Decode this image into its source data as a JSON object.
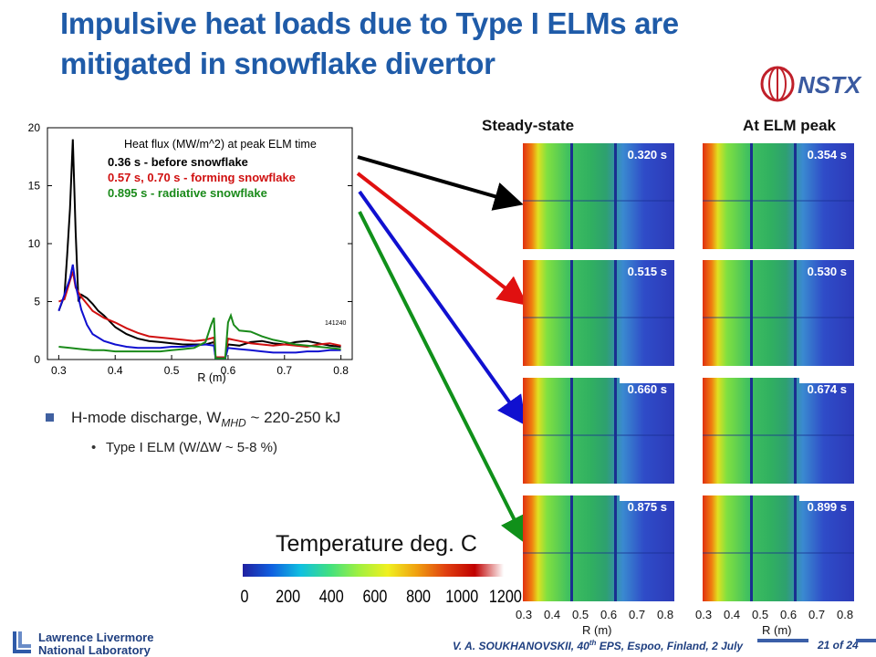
{
  "slide": {
    "title_line1": "Impulsive heat loads due to Type I ELMs are",
    "title_line2": "mitigated in snowflake divertor",
    "logo_text": "NSTX"
  },
  "columns": {
    "left": "Steady-state",
    "right": "At ELM peak"
  },
  "chart_data": {
    "type": "line",
    "title": "Heat flux (MW/m^2) at peak ELM time",
    "xlabel": "R (m)",
    "ylabel": "",
    "xlim": [
      0.28,
      0.82
    ],
    "ylim": [
      0,
      20
    ],
    "xticks": [
      "0.3",
      "0.4",
      "0.5",
      "0.6",
      "0.7",
      "0.8"
    ],
    "yticks": [
      "0",
      "5",
      "10",
      "15",
      "20"
    ],
    "annotation": "141240",
    "legend_entries": [
      {
        "bold": "0.36 s",
        "text": " - before snowflake",
        "color": "#000000"
      },
      {
        "bold": "0.57 s, 0.70 s",
        "text": " - forming snowflake",
        "color": "#d01010"
      },
      {
        "bold": "0.895 s",
        "text": " - radiative snowflake",
        "color": "#1a8a1a"
      }
    ],
    "series": [
      {
        "color": "#000000",
        "points": [
          [
            0.3,
            4.2
          ],
          [
            0.31,
            5.5
          ],
          [
            0.315,
            9
          ],
          [
            0.32,
            13
          ],
          [
            0.325,
            19
          ],
          [
            0.33,
            11
          ],
          [
            0.335,
            5
          ],
          [
            0.34,
            5.6
          ],
          [
            0.35,
            5.3
          ],
          [
            0.36,
            4.8
          ],
          [
            0.37,
            4.2
          ],
          [
            0.38,
            3.8
          ],
          [
            0.4,
            2.8
          ],
          [
            0.42,
            2.2
          ],
          [
            0.44,
            1.8
          ],
          [
            0.46,
            1.6
          ],
          [
            0.48,
            1.5
          ],
          [
            0.5,
            1.4
          ],
          [
            0.52,
            1.3
          ],
          [
            0.54,
            1.3
          ],
          [
            0.56,
            1.3
          ],
          [
            0.575,
            1.5
          ],
          [
            0.578,
            0.1
          ],
          [
            0.595,
            0.1
          ],
          [
            0.6,
            1.3
          ],
          [
            0.62,
            1.2
          ],
          [
            0.64,
            1.5
          ],
          [
            0.66,
            1.6
          ],
          [
            0.68,
            1.4
          ],
          [
            0.7,
            1.3
          ],
          [
            0.72,
            1.5
          ],
          [
            0.74,
            1.6
          ],
          [
            0.76,
            1.4
          ],
          [
            0.78,
            1.2
          ],
          [
            0.8,
            1.1
          ]
        ]
      },
      {
        "color": "#d01010",
        "points": [
          [
            0.3,
            5
          ],
          [
            0.31,
            5.2
          ],
          [
            0.32,
            6.8
          ],
          [
            0.325,
            7.6
          ],
          [
            0.33,
            6.2
          ],
          [
            0.34,
            5.4
          ],
          [
            0.35,
            4.8
          ],
          [
            0.36,
            4.2
          ],
          [
            0.38,
            3.6
          ],
          [
            0.4,
            3.2
          ],
          [
            0.42,
            2.7
          ],
          [
            0.44,
            2.3
          ],
          [
            0.46,
            2.0
          ],
          [
            0.48,
            1.9
          ],
          [
            0.5,
            1.8
          ],
          [
            0.52,
            1.7
          ],
          [
            0.54,
            1.6
          ],
          [
            0.56,
            1.7
          ],
          [
            0.575,
            1.9
          ],
          [
            0.578,
            0.2
          ],
          [
            0.595,
            0.2
          ],
          [
            0.6,
            1.8
          ],
          [
            0.62,
            1.6
          ],
          [
            0.64,
            1.4
          ],
          [
            0.66,
            1.3
          ],
          [
            0.68,
            1.2
          ],
          [
            0.7,
            1.3
          ],
          [
            0.72,
            1.2
          ],
          [
            0.74,
            1.1
          ],
          [
            0.76,
            1.3
          ],
          [
            0.78,
            1.4
          ],
          [
            0.8,
            1.2
          ]
        ]
      },
      {
        "color": "#1010d0",
        "points": [
          [
            0.3,
            4.2
          ],
          [
            0.31,
            5.6
          ],
          [
            0.32,
            7
          ],
          [
            0.325,
            8.2
          ],
          [
            0.33,
            6.4
          ],
          [
            0.34,
            4.3
          ],
          [
            0.35,
            3.0
          ],
          [
            0.36,
            2.2
          ],
          [
            0.38,
            1.6
          ],
          [
            0.4,
            1.3
          ],
          [
            0.42,
            1.1
          ],
          [
            0.44,
            1.0
          ],
          [
            0.46,
            1.0
          ],
          [
            0.48,
            1.0
          ],
          [
            0.5,
            1.1
          ],
          [
            0.52,
            1.1
          ],
          [
            0.54,
            1.2
          ],
          [
            0.56,
            1.3
          ],
          [
            0.575,
            1.2
          ],
          [
            0.578,
            0.1
          ],
          [
            0.595,
            0.1
          ],
          [
            0.6,
            1.0
          ],
          [
            0.62,
            0.9
          ],
          [
            0.64,
            0.8
          ],
          [
            0.66,
            0.7
          ],
          [
            0.68,
            0.6
          ],
          [
            0.7,
            0.6
          ],
          [
            0.72,
            0.6
          ],
          [
            0.74,
            0.7
          ],
          [
            0.76,
            0.7
          ],
          [
            0.78,
            0.8
          ],
          [
            0.8,
            0.8
          ]
        ]
      },
      {
        "color": "#1a8a1a",
        "points": [
          [
            0.3,
            1.1
          ],
          [
            0.32,
            1.0
          ],
          [
            0.34,
            0.9
          ],
          [
            0.36,
            0.8
          ],
          [
            0.38,
            0.8
          ],
          [
            0.4,
            0.7
          ],
          [
            0.42,
            0.7
          ],
          [
            0.44,
            0.7
          ],
          [
            0.46,
            0.7
          ],
          [
            0.48,
            0.7
          ],
          [
            0.5,
            0.8
          ],
          [
            0.52,
            0.9
          ],
          [
            0.54,
            1.0
          ],
          [
            0.56,
            1.5
          ],
          [
            0.57,
            3.0
          ],
          [
            0.575,
            3.6
          ],
          [
            0.578,
            0.1
          ],
          [
            0.595,
            0.1
          ],
          [
            0.6,
            3.2
          ],
          [
            0.605,
            3.8
          ],
          [
            0.61,
            3.0
          ],
          [
            0.62,
            2.5
          ],
          [
            0.64,
            2.4
          ],
          [
            0.66,
            2.0
          ],
          [
            0.68,
            1.7
          ],
          [
            0.7,
            1.5
          ],
          [
            0.72,
            1.3
          ],
          [
            0.74,
            1.2
          ],
          [
            0.76,
            1.1
          ],
          [
            0.78,
            1.0
          ],
          [
            0.8,
            0.9
          ]
        ]
      }
    ]
  },
  "bullets": {
    "main_prefix": "H-mode discharge, W",
    "main_sub": "MHD",
    "main_suffix": " ~ 220-250 kJ",
    "sub_prefix": "Type I ELM (W/",
    "sub_delta": "∆",
    "sub_suffix": "W ~ 5-8 %)"
  },
  "colorbar": {
    "title": "Temperature deg. C",
    "ticks": [
      "0",
      "200",
      "400",
      "600",
      "800",
      "1000",
      "1200"
    ]
  },
  "ir_panels": {
    "steady": [
      "0.320 s",
      "0.515 s",
      "0.660 s",
      "0.875 s"
    ],
    "elm": [
      "0.354 s",
      "0.530 s",
      "0.674 s",
      "0.899 s"
    ],
    "axis_ticks": [
      "0.3",
      "0.4",
      "0.5",
      "0.6",
      "0.7",
      "0.8"
    ],
    "axis_label": "R (m)"
  },
  "arrows": [
    {
      "color": "#000000"
    },
    {
      "color": "#e01010"
    },
    {
      "color": "#1010d0"
    },
    {
      "color": "#10901a"
    }
  ],
  "footer": {
    "lab_line1": "Lawrence Livermore",
    "lab_line2": "National Laboratory",
    "citation_prefix": "V. A. SOUKHANOVSKII, 40",
    "citation_sup": "th",
    "citation_suffix": " EPS, Espoo, Finland, 2 July",
    "page": "21 of 24"
  }
}
